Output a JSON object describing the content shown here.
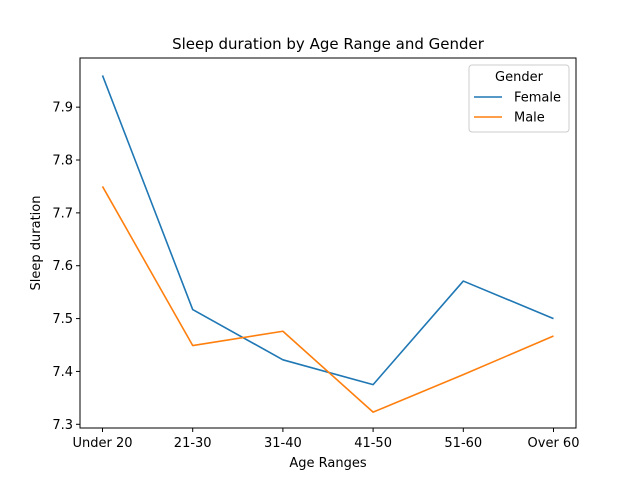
{
  "chart_data": {
    "type": "line",
    "title": "Sleep duration by Age Range and Gender",
    "xlabel": "Age Ranges",
    "ylabel": "Sleep duration",
    "categories": [
      "Under 20",
      "21-30",
      "31-40",
      "41-50",
      "51-60",
      "Over 60"
    ],
    "series": [
      {
        "name": "Female",
        "color": "#1f77b4",
        "values": [
          7.96,
          7.517,
          7.422,
          7.375,
          7.571,
          7.5
        ]
      },
      {
        "name": "Male",
        "color": "#ff7f0e",
        "values": [
          7.75,
          7.449,
          7.476,
          7.323,
          7.394,
          7.467
        ]
      }
    ],
    "ylim": [
      7.293,
      7.993
    ],
    "yticks": [
      "7.3",
      "7.4",
      "7.5",
      "7.6",
      "7.7",
      "7.8",
      "7.9"
    ],
    "legend": {
      "title": "Gender",
      "placement": "top-right"
    },
    "grid": false
  }
}
